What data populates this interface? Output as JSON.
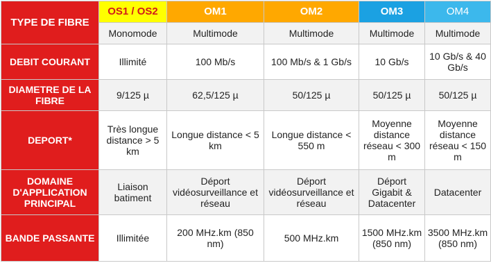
{
  "table": {
    "corner_label": "TYPE DE FIBRE",
    "columns": [
      "OS1 / OS2",
      "OM1",
      "OM2",
      "OM3",
      "OM4"
    ],
    "column_colors": [
      "#ffff00",
      "#ffa800",
      "#ffa800",
      "#1ba1e2",
      "#3cb8ec"
    ],
    "mode_row": [
      "Monomode",
      "Multimode",
      "Multimode",
      "Multimode",
      "Multimode"
    ],
    "rows": [
      {
        "label": "DEBIT COURANT",
        "values": [
          "Illimité",
          "100 Mb/s",
          "100 Mb/s & 1 Gb/s",
          "10 Gb/s",
          "10 Gb/s & 40 Gb/s"
        ]
      },
      {
        "label": "DIAMETRE DE LA FIBRE",
        "values": [
          "9/125 µ",
          "62,5/125 µ",
          "50/125 µ",
          "50/125 µ",
          "50/125 µ"
        ]
      },
      {
        "label": "DEPORT*",
        "values": [
          "Très longue distance > 5 km",
          "Longue distance < 5 km",
          "Longue distance < 550 m",
          "Moyenne distance réseau < 300 m",
          "Moyenne distance réseau < 150 m"
        ]
      },
      {
        "label": "DOMAINE D'APPLICATION PRINCIPAL",
        "values": [
          "Liaison batiment",
          "Déport vidéosurveillance et réseau",
          "Déport vidéosurveillance et réseau",
          "Déport Gigabit & Datacenter",
          "Datacenter"
        ]
      },
      {
        "label": "BANDE PASSANTE",
        "values": [
          "Illimitée",
          "200 MHz.km (850 nm)",
          "500 MHz.km",
          "1500 MHz.km (850 nm)",
          "3500 MHz.km (850 nm)"
        ]
      }
    ]
  }
}
